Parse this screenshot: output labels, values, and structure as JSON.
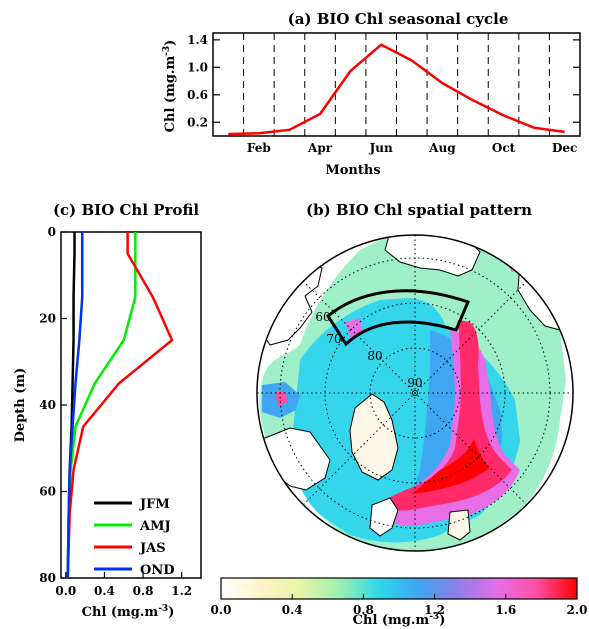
{
  "chart_data": [
    {
      "id": "a",
      "type": "line",
      "title": "(a) BIO Chl seasonal cycle",
      "xlabel": "Months",
      "ylabel": "Chl (mg.m-3)",
      "x": [
        1,
        2,
        3,
        4,
        5,
        6,
        7,
        8,
        9,
        10,
        11,
        12
      ],
      "x_tick_values": [
        2,
        4,
        6,
        8,
        10,
        12
      ],
      "x_tick_labels": [
        "Feb",
        "Apr",
        "Jun",
        "Aug",
        "Oct",
        "Dec"
      ],
      "y_ticks": [
        0.2,
        0.6,
        1.0,
        1.4
      ],
      "y_tick_labels": [
        "0.2",
        "0.6",
        "1.0",
        "1.4"
      ],
      "ylim": [
        0,
        1.5
      ],
      "xlim": [
        0.5,
        12.5
      ],
      "vertical_dashed_grid": true,
      "series": [
        {
          "color": "#ff0000",
          "values": [
            0.03,
            0.04,
            0.09,
            0.32,
            0.95,
            1.33,
            1.1,
            0.77,
            0.52,
            0.3,
            0.12,
            0.06
          ]
        }
      ]
    },
    {
      "id": "c",
      "type": "line",
      "title": "(c) BIO Chl Profil",
      "xlabel": "Chl (mg.m-3)",
      "ylabel": "Depth (m)",
      "x_ticks": [
        0.0,
        0.4,
        0.8,
        1.2
      ],
      "x_tick_labels": [
        "0.0",
        "0.4",
        "0.8",
        "1.2"
      ],
      "y_ticks": [
        0,
        20,
        40,
        60,
        80
      ],
      "y_tick_labels": [
        "0",
        "20",
        "40",
        "60",
        "80"
      ],
      "xlim": [
        -0.05,
        1.4
      ],
      "ylim": [
        0,
        80
      ],
      "y_inverted": true,
      "legend_placement": "bottom",
      "series": [
        {
          "name": "JFM",
          "color": "#000000",
          "points": [
            [
              0.09,
              0
            ],
            [
              0.09,
              5
            ],
            [
              0.08,
              15
            ],
            [
              0.08,
              25
            ],
            [
              0.07,
              35
            ],
            [
              0.06,
              45
            ],
            [
              0.04,
              55
            ],
            [
              0.03,
              65
            ],
            [
              0.02,
              80
            ]
          ]
        },
        {
          "name": "AMJ",
          "color": "#00ee00",
          "points": [
            [
              0.72,
              0
            ],
            [
              0.72,
              5
            ],
            [
              0.72,
              15
            ],
            [
              0.6,
              25
            ],
            [
              0.3,
              35
            ],
            [
              0.1,
              45
            ],
            [
              0.05,
              55
            ],
            [
              0.03,
              65
            ],
            [
              0.02,
              80
            ]
          ]
        },
        {
          "name": "JAS",
          "color": "#ff0000",
          "points": [
            [
              0.64,
              0
            ],
            [
              0.64,
              5
            ],
            [
              0.9,
              15
            ],
            [
              1.1,
              25
            ],
            [
              0.55,
              35
            ],
            [
              0.18,
              45
            ],
            [
              0.08,
              55
            ],
            [
              0.04,
              65
            ],
            [
              0.02,
              80
            ]
          ]
        },
        {
          "name": "OND",
          "color": "#0033ee",
          "points": [
            [
              0.17,
              0
            ],
            [
              0.17,
              5
            ],
            [
              0.17,
              15
            ],
            [
              0.14,
              25
            ],
            [
              0.1,
              35
            ],
            [
              0.07,
              45
            ],
            [
              0.04,
              55
            ],
            [
              0.03,
              65
            ],
            [
              0.02,
              80
            ]
          ]
        }
      ]
    },
    {
      "id": "b",
      "type": "heatmap",
      "title": "(b) BIO Chl spatial pattern",
      "projection": "north polar stereographic",
      "latitude_labels": [
        "60",
        "70",
        "80",
        "90"
      ],
      "colorbar_label": "Chl (mg.m-3)",
      "colorbar_ticks": [
        0.0,
        0.4,
        0.8,
        1.2,
        1.6,
        2.0
      ],
      "colorbar_tick_labels": [
        "0.0",
        "0.4",
        "0.8",
        "1.2",
        "1.6",
        "2.0"
      ],
      "colorbar_range": [
        0.0,
        2.0
      ],
      "colormap": [
        "#ffffff",
        "#fff4c8",
        "#e6f5a8",
        "#9cf0b0",
        "#2fd8ea",
        "#3da6f0",
        "#8f7ee8",
        "#e86ee8",
        "#ff4fa0",
        "#ff0000"
      ]
    }
  ]
}
